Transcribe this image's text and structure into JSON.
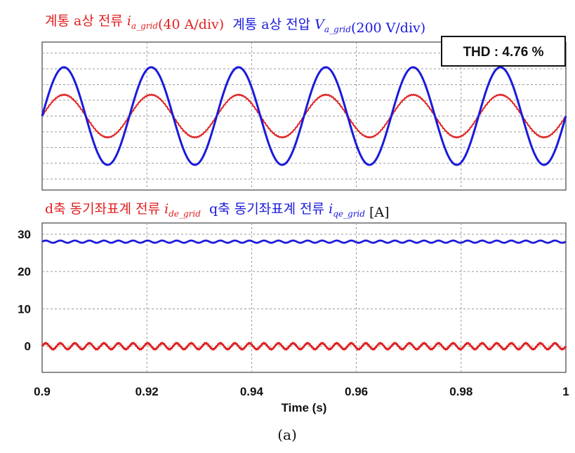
{
  "chart_data": [
    {
      "type": "line",
      "title_parts": [
        {
          "text": "계통 a상 전류 ",
          "color": "#e02020",
          "italic": false
        },
        {
          "text": "i",
          "color": "#e02020",
          "italic": true
        },
        {
          "text": "a_grid",
          "color": "#e02020",
          "italic": true,
          "sub": true
        },
        {
          "text": "(40 A/div)",
          "color": "#e02020",
          "italic": false
        },
        {
          "text": "계통 a상 전압 ",
          "color": "#1a1adc",
          "italic": false
        },
        {
          "text": "V",
          "color": "#1a1adc",
          "italic": true
        },
        {
          "text": "a_grid",
          "color": "#1a1adc",
          "italic": true,
          "sub": true
        },
        {
          "text": "(200 V/div)",
          "color": "#1a1adc",
          "italic": false
        }
      ],
      "annotation": "THD : 4.76 %",
      "x_range": [
        0.9,
        1.0
      ],
      "grid": true,
      "series": [
        {
          "name": "계통 a상 전류 i_a_grid",
          "color": "#e02020",
          "frequency_hz": 60,
          "amplitude_div": 1.35,
          "phase_deg": 0,
          "ripple": true
        },
        {
          "name": "계통 a상 전압 V_a_grid",
          "color": "#1a1adc",
          "frequency_hz": 60,
          "amplitude_div": 3.1,
          "phase_deg": 0,
          "ripple": false
        }
      ]
    },
    {
      "type": "line",
      "title_parts": [
        {
          "text": "d축 동기좌표계 전류 ",
          "color": "#e02020",
          "italic": false
        },
        {
          "text": "i",
          "color": "#e02020",
          "italic": true
        },
        {
          "text": "de_grid",
          "color": "#e02020",
          "italic": true,
          "sub": true
        },
        {
          "text": "q축 동기좌표계 전류 ",
          "color": "#1a1adc",
          "italic": false
        },
        {
          "text": "i",
          "color": "#1a1adc",
          "italic": true
        },
        {
          "text": "qe_grid",
          "color": "#1a1adc",
          "italic": true,
          "sub": true
        },
        {
          "text": " [A]",
          "color": "#111111",
          "italic": false
        }
      ],
      "xlabel": "Time (s)",
      "ylabel": "",
      "x_range": [
        0.9,
        1.0
      ],
      "y_range": [
        -7,
        33
      ],
      "x_ticks": [
        "0.9",
        "0.92",
        "0.94",
        "0.96",
        "0.98",
        "1"
      ],
      "y_ticks": [
        "30",
        "20",
        "10",
        "0"
      ],
      "grid": true,
      "series": [
        {
          "name": "d축 동기좌표계 전류 i_de_grid",
          "color": "#e02020",
          "mean": 0,
          "ripple_amplitude": 0.8,
          "ripple_hz": 360
        },
        {
          "name": "q축 동기좌표계 전류 i_qe_grid",
          "color": "#1a1adc",
          "mean": 28,
          "ripple_amplitude": 0.3,
          "ripple_hz": 360
        }
      ]
    }
  ],
  "caption": "(a)"
}
